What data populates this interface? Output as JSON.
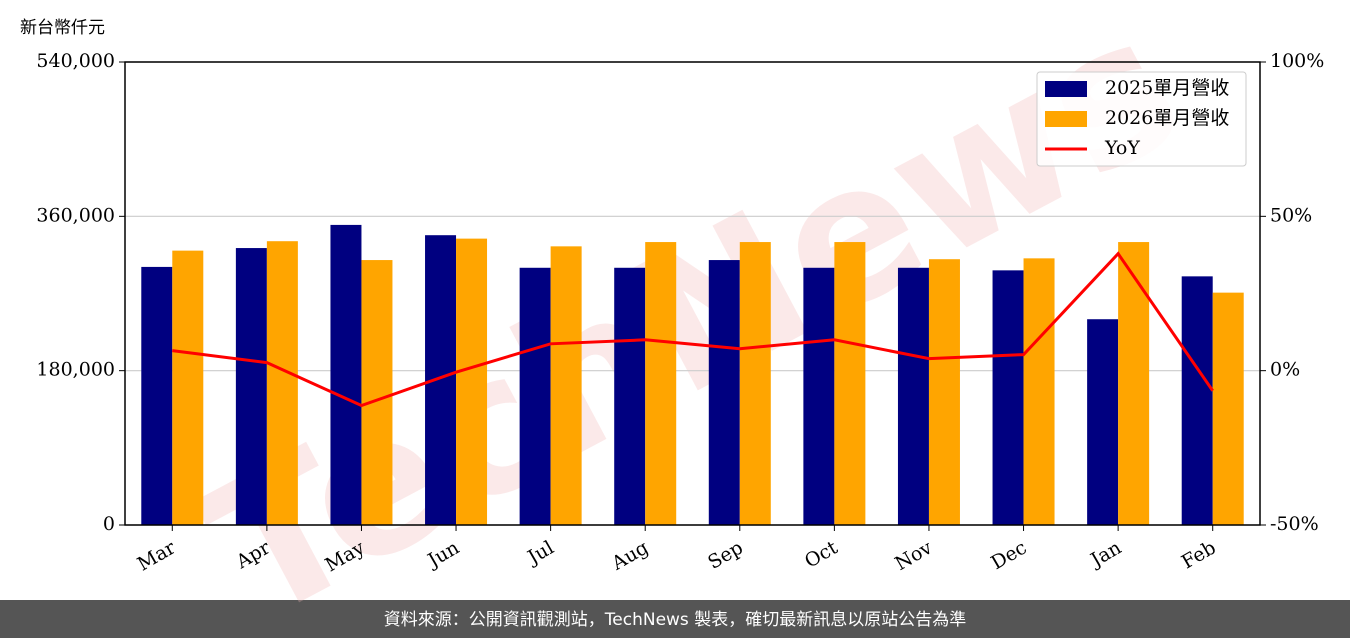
{
  "chart_data": {
    "type": "bar",
    "y_label": "新台幣仟元",
    "watermark": "TechNews",
    "source": "資料來源：公開資訊觀測站，TechNews 製表，確切最新訊息以原站公告為準",
    "categories": [
      "Mar",
      "Apr",
      "May",
      "Jun",
      "Jul",
      "Aug",
      "Sep",
      "Oct",
      "Nov",
      "Dec",
      "Jan",
      "Feb"
    ],
    "series": [
      {
        "name": "2025單月營收",
        "type": "bar",
        "color": "#000080",
        "values": [
          301000,
          323000,
          350000,
          338000,
          300000,
          300000,
          309000,
          300000,
          300000,
          297000,
          240000,
          290000
        ]
      },
      {
        "name": "2026單月營收",
        "type": "bar",
        "color": "#ffa500",
        "values": [
          320000,
          331000,
          309000,
          334000,
          325000,
          330000,
          330000,
          330000,
          310000,
          311000,
          330000,
          271000
        ]
      },
      {
        "name": "YoY",
        "type": "line",
        "axis": "y2",
        "color": "#ff0000",
        "values": [
          6.5,
          2.6,
          -11.3,
          -0.5,
          8.7,
          10,
          7.1,
          10,
          3.9,
          5.2,
          37.9,
          -6.5
        ]
      }
    ],
    "ylim": [
      0,
      540000
    ],
    "yticks": [
      0,
      {
        "value": 180000,
        "label": "180,000"
      },
      {
        "value": 360000,
        "label": "360,000"
      },
      {
        "value": 540000,
        "label": "540,000"
      }
    ],
    "y2lim": [
      -50,
      100
    ],
    "y2ticks": [
      {
        "value": -50,
        "label": "-50%"
      },
      {
        "value": 0,
        "label": "0%"
      },
      {
        "value": 50,
        "label": "50%"
      },
      {
        "value": 100,
        "label": "100%"
      }
    ],
    "grid": true,
    "legend": "upper right"
  }
}
